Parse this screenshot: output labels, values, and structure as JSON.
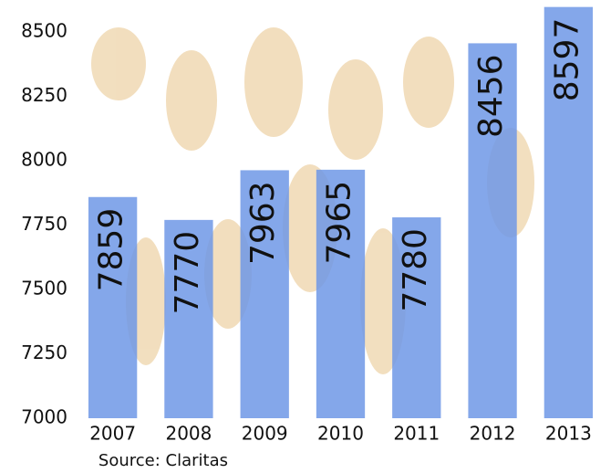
{
  "chart_data": {
    "type": "bar",
    "categories": [
      "2007",
      "2008",
      "2009",
      "2010",
      "2011",
      "2012",
      "2013"
    ],
    "values": [
      7859,
      7770,
      7963,
      7965,
      7780,
      8456,
      8597
    ],
    "color": "#6f98e6",
    "ylim": [
      7000,
      8600
    ],
    "yticks": [
      7000,
      7250,
      7500,
      7750,
      8000,
      8250,
      8500
    ],
    "grid": false,
    "source": "Source: Claritas"
  }
}
